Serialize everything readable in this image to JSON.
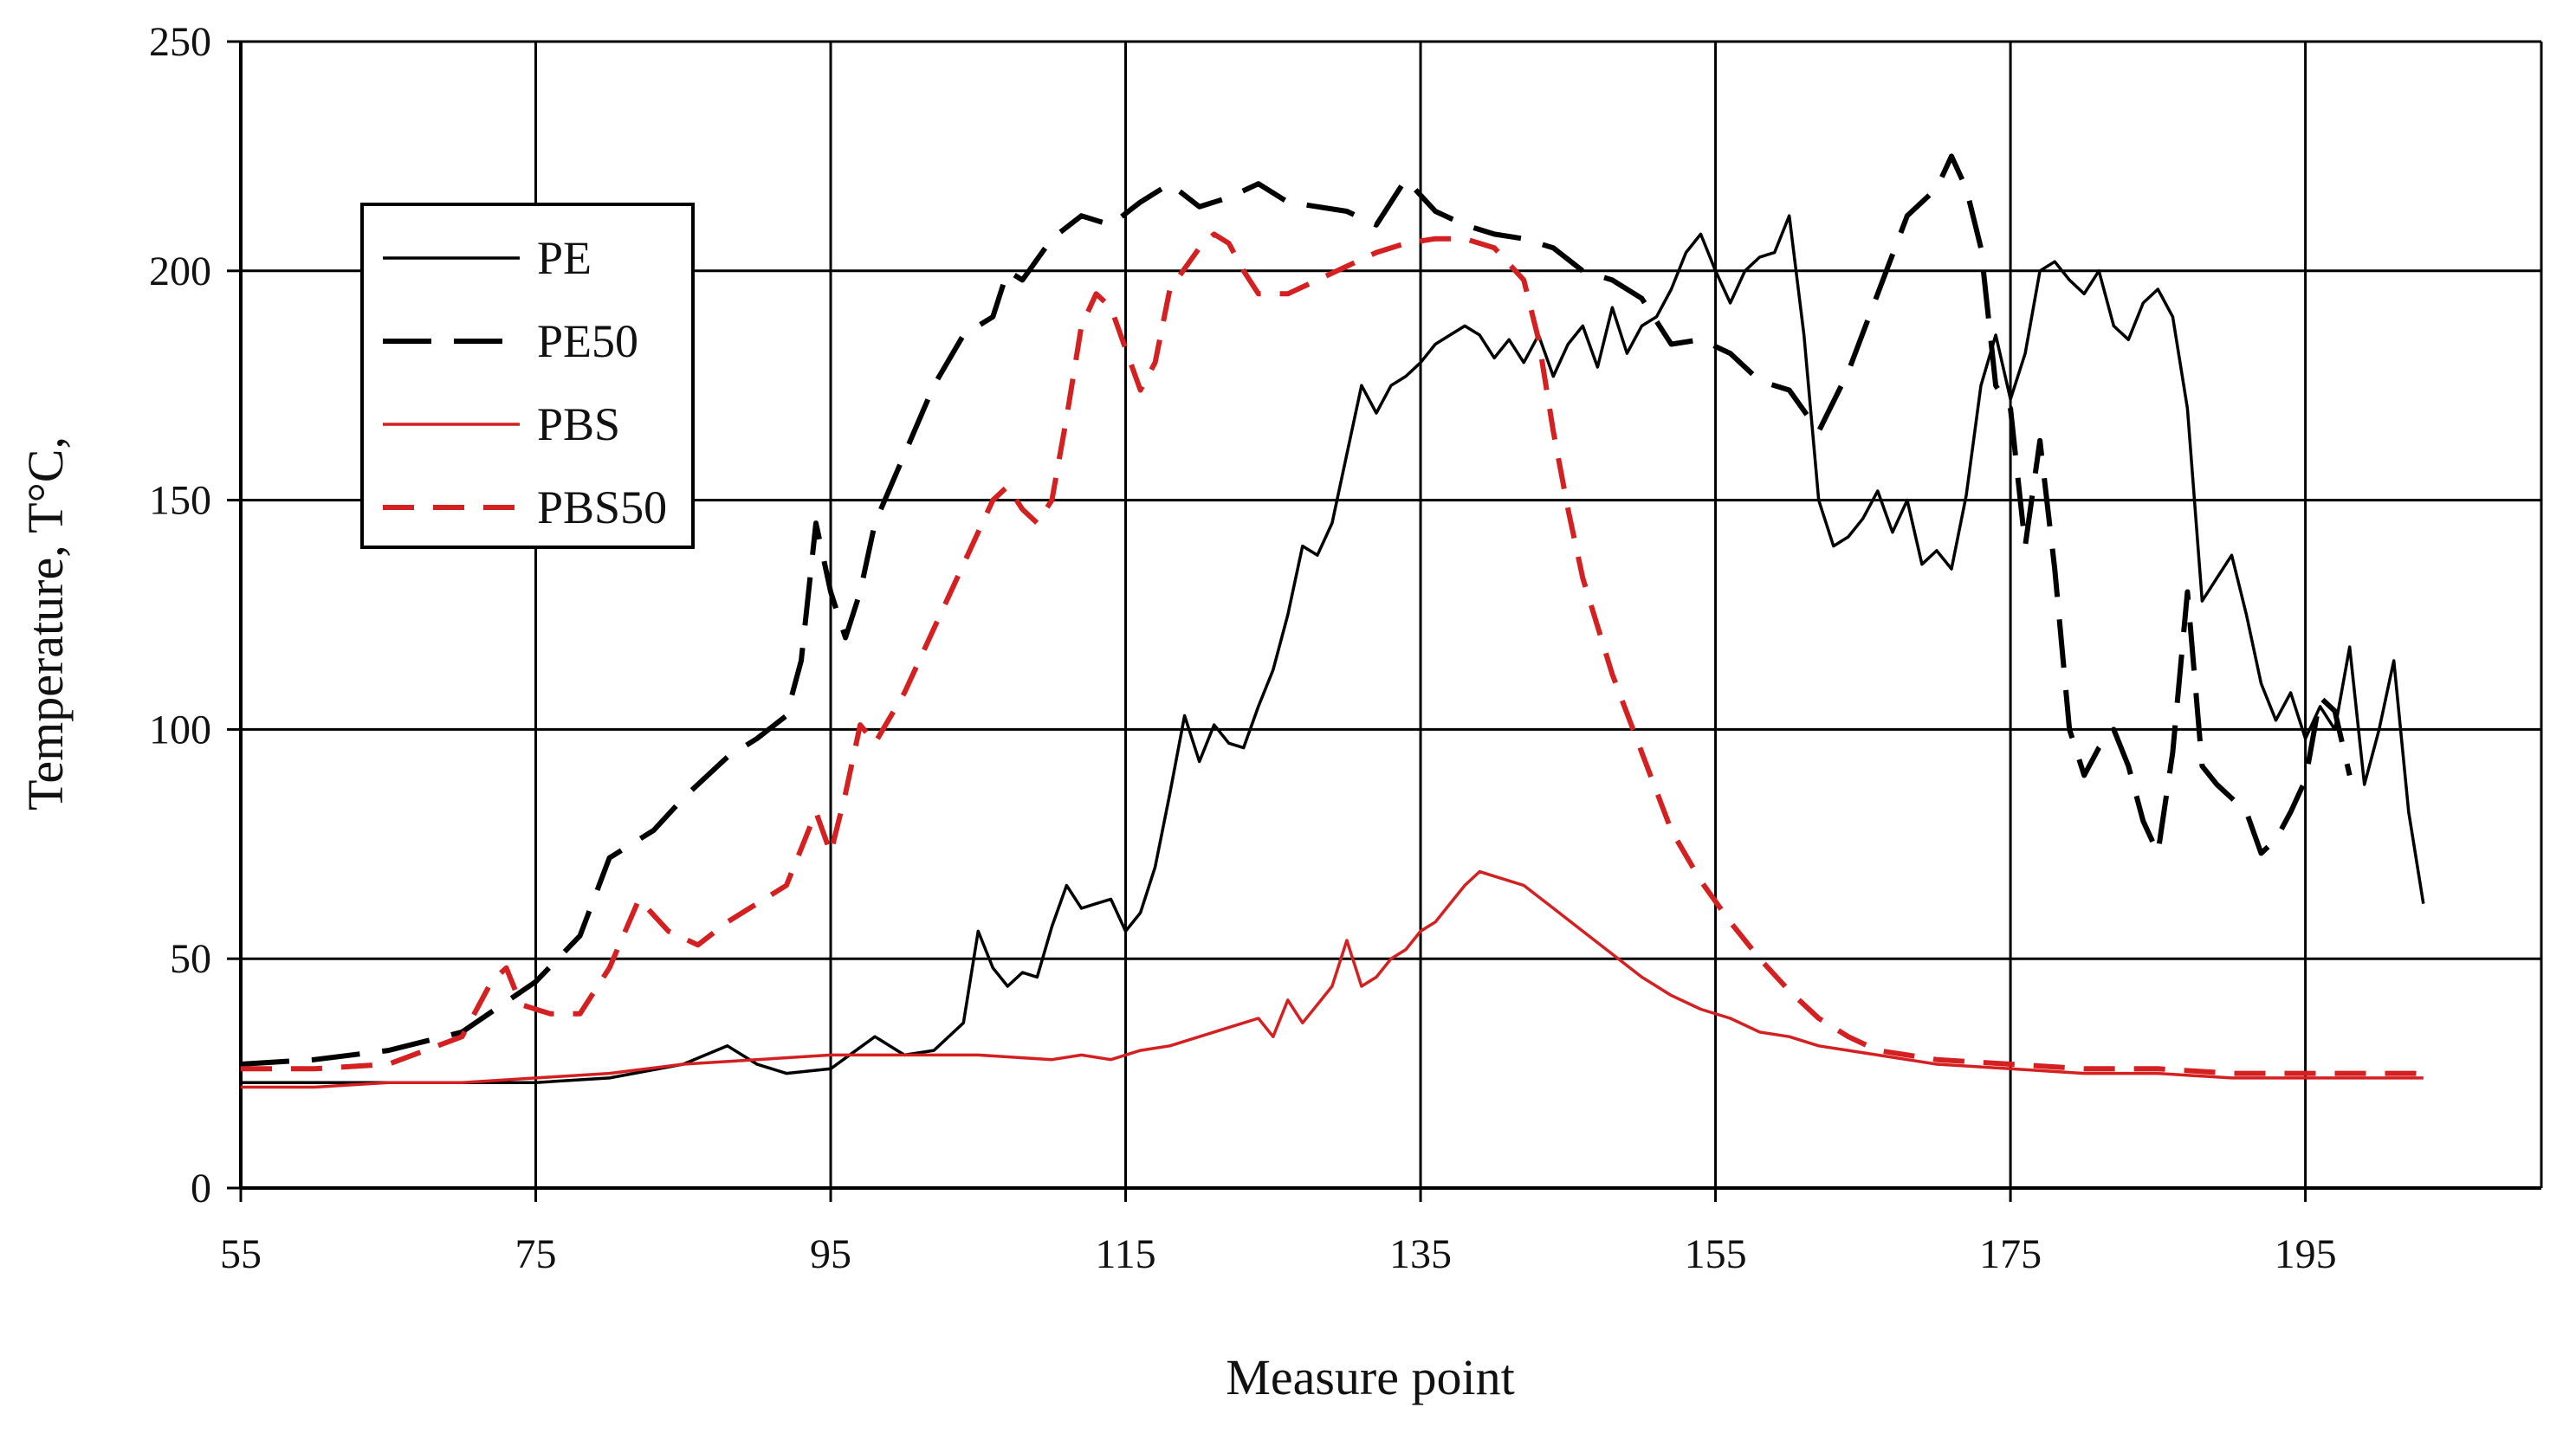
{
  "chart_data": {
    "type": "line",
    "xlabel": "Measure point",
    "ylabel": "Temperature, T°C,",
    "xlim": [
      55,
      211
    ],
    "ylim": [
      0,
      250
    ],
    "xticks": [
      55,
      75,
      95,
      115,
      135,
      155,
      175,
      195
    ],
    "yticks": [
      0,
      50,
      100,
      150,
      200,
      250
    ],
    "grid": true,
    "legend_position": "upper-left",
    "series": [
      {
        "name": "PE",
        "color": "#000000",
        "dash": "solid",
        "points": [
          [
            55,
            23
          ],
          [
            65,
            23
          ],
          [
            70,
            23
          ],
          [
            75,
            23
          ],
          [
            80,
            24
          ],
          [
            85,
            27
          ],
          [
            88,
            31
          ],
          [
            90,
            27
          ],
          [
            92,
            25
          ],
          [
            95,
            26
          ],
          [
            98,
            33
          ],
          [
            100,
            29
          ],
          [
            102,
            30
          ],
          [
            104,
            36
          ],
          [
            105,
            56
          ],
          [
            106,
            48
          ],
          [
            107,
            44
          ],
          [
            108,
            47
          ],
          [
            109,
            46
          ],
          [
            110,
            57
          ],
          [
            111,
            66
          ],
          [
            112,
            61
          ],
          [
            113,
            62
          ],
          [
            114,
            63
          ],
          [
            115,
            56
          ],
          [
            116,
            60
          ],
          [
            117,
            70
          ],
          [
            118,
            86
          ],
          [
            119,
            103
          ],
          [
            120,
            93
          ],
          [
            121,
            101
          ],
          [
            122,
            97
          ],
          [
            123,
            96
          ],
          [
            124,
            105
          ],
          [
            125,
            113
          ],
          [
            126,
            125
          ],
          [
            127,
            140
          ],
          [
            128,
            138
          ],
          [
            129,
            145
          ],
          [
            130,
            160
          ],
          [
            131,
            175
          ],
          [
            132,
            169
          ],
          [
            133,
            175
          ],
          [
            134,
            177
          ],
          [
            135,
            180
          ],
          [
            136,
            184
          ],
          [
            137,
            186
          ],
          [
            138,
            188
          ],
          [
            139,
            186
          ],
          [
            140,
            181
          ],
          [
            141,
            185
          ],
          [
            142,
            180
          ],
          [
            143,
            186
          ],
          [
            144,
            177
          ],
          [
            145,
            184
          ],
          [
            146,
            188
          ],
          [
            147,
            179
          ],
          [
            148,
            192
          ],
          [
            149,
            182
          ],
          [
            150,
            188
          ],
          [
            151,
            190
          ],
          [
            152,
            196
          ],
          [
            153,
            204
          ],
          [
            154,
            208
          ],
          [
            155,
            200
          ],
          [
            156,
            193
          ],
          [
            157,
            200
          ],
          [
            158,
            203
          ],
          [
            159,
            204
          ],
          [
            160,
            212
          ],
          [
            161,
            186
          ],
          [
            162,
            150
          ],
          [
            163,
            140
          ],
          [
            164,
            142
          ],
          [
            165,
            146
          ],
          [
            166,
            152
          ],
          [
            167,
            143
          ],
          [
            168,
            150
          ],
          [
            169,
            136
          ],
          [
            170,
            139
          ],
          [
            171,
            135
          ],
          [
            172,
            151
          ],
          [
            173,
            175
          ],
          [
            174,
            186
          ],
          [
            175,
            172
          ],
          [
            176,
            182
          ],
          [
            177,
            200
          ],
          [
            178,
            202
          ],
          [
            179,
            198
          ],
          [
            180,
            195
          ],
          [
            181,
            200
          ],
          [
            182,
            188
          ],
          [
            183,
            185
          ],
          [
            184,
            193
          ],
          [
            185,
            196
          ],
          [
            186,
            190
          ],
          [
            187,
            170
          ],
          [
            188,
            128
          ],
          [
            189,
            133
          ],
          [
            190,
            138
          ],
          [
            191,
            125
          ],
          [
            192,
            110
          ],
          [
            193,
            102
          ],
          [
            194,
            108
          ],
          [
            195,
            98
          ],
          [
            196,
            105
          ],
          [
            197,
            100
          ],
          [
            198,
            118
          ],
          [
            199,
            88
          ],
          [
            200,
            100
          ],
          [
            201,
            115
          ],
          [
            202,
            82
          ],
          [
            203,
            62
          ]
        ]
      },
      {
        "name": "PE50",
        "color": "#000000",
        "dash": "long-dash",
        "points": [
          [
            55,
            27
          ],
          [
            60,
            28
          ],
          [
            65,
            30
          ],
          [
            70,
            34
          ],
          [
            75,
            45
          ],
          [
            78,
            55
          ],
          [
            80,
            72
          ],
          [
            83,
            78
          ],
          [
            85,
            85
          ],
          [
            88,
            94
          ],
          [
            90,
            98
          ],
          [
            92,
            103
          ],
          [
            93,
            115
          ],
          [
            94,
            145
          ],
          [
            95,
            130
          ],
          [
            96,
            120
          ],
          [
            97,
            130
          ],
          [
            98,
            145
          ],
          [
            100,
            160
          ],
          [
            102,
            175
          ],
          [
            104,
            186
          ],
          [
            106,
            190
          ],
          [
            107,
            200
          ],
          [
            108,
            198
          ],
          [
            110,
            207
          ],
          [
            112,
            212
          ],
          [
            114,
            210
          ],
          [
            116,
            215
          ],
          [
            118,
            219
          ],
          [
            120,
            214
          ],
          [
            122,
            216
          ],
          [
            124,
            219
          ],
          [
            126,
            215
          ],
          [
            128,
            214
          ],
          [
            130,
            213
          ],
          [
            132,
            210
          ],
          [
            134,
            220
          ],
          [
            136,
            213
          ],
          [
            138,
            210
          ],
          [
            140,
            208
          ],
          [
            142,
            207
          ],
          [
            144,
            205
          ],
          [
            146,
            200
          ],
          [
            148,
            198
          ],
          [
            150,
            194
          ],
          [
            152,
            184
          ],
          [
            154,
            185
          ],
          [
            156,
            182
          ],
          [
            158,
            176
          ],
          [
            160,
            174
          ],
          [
            162,
            165
          ],
          [
            164,
            178
          ],
          [
            166,
            195
          ],
          [
            168,
            212
          ],
          [
            170,
            218
          ],
          [
            171,
            225
          ],
          [
            172,
            218
          ],
          [
            173,
            205
          ],
          [
            174,
            175
          ],
          [
            175,
            170
          ],
          [
            176,
            140
          ],
          [
            177,
            163
          ],
          [
            178,
            135
          ],
          [
            179,
            100
          ],
          [
            180,
            90
          ],
          [
            181,
            96
          ],
          [
            182,
            100
          ],
          [
            183,
            92
          ],
          [
            184,
            80
          ],
          [
            185,
            73
          ],
          [
            186,
            95
          ],
          [
            187,
            130
          ],
          [
            188,
            92
          ],
          [
            189,
            88
          ],
          [
            190,
            85
          ],
          [
            191,
            82
          ],
          [
            192,
            73
          ],
          [
            193,
            76
          ],
          [
            194,
            82
          ],
          [
            195,
            89
          ],
          [
            196,
            107
          ],
          [
            197,
            104
          ],
          [
            198,
            90
          ]
        ]
      },
      {
        "name": "PBS",
        "color": "#d42020",
        "dash": "solid",
        "points": [
          [
            55,
            22
          ],
          [
            60,
            22
          ],
          [
            65,
            23
          ],
          [
            70,
            23
          ],
          [
            75,
            24
          ],
          [
            80,
            25
          ],
          [
            85,
            27
          ],
          [
            90,
            28
          ],
          [
            95,
            29
          ],
          [
            100,
            29
          ],
          [
            105,
            29
          ],
          [
            110,
            28
          ],
          [
            112,
            29
          ],
          [
            114,
            28
          ],
          [
            116,
            30
          ],
          [
            118,
            31
          ],
          [
            120,
            33
          ],
          [
            122,
            35
          ],
          [
            124,
            37
          ],
          [
            125,
            33
          ],
          [
            126,
            41
          ],
          [
            127,
            36
          ],
          [
            128,
            40
          ],
          [
            129,
            44
          ],
          [
            130,
            54
          ],
          [
            131,
            44
          ],
          [
            132,
            46
          ],
          [
            133,
            50
          ],
          [
            134,
            52
          ],
          [
            135,
            56
          ],
          [
            136,
            58
          ],
          [
            137,
            62
          ],
          [
            138,
            66
          ],
          [
            139,
            69
          ],
          [
            140,
            68
          ],
          [
            142,
            66
          ],
          [
            144,
            61
          ],
          [
            146,
            56
          ],
          [
            148,
            51
          ],
          [
            150,
            46
          ],
          [
            152,
            42
          ],
          [
            154,
            39
          ],
          [
            156,
            37
          ],
          [
            158,
            34
          ],
          [
            160,
            33
          ],
          [
            162,
            31
          ],
          [
            164,
            30
          ],
          [
            166,
            29
          ],
          [
            168,
            28
          ],
          [
            170,
            27
          ],
          [
            175,
            26
          ],
          [
            180,
            25
          ],
          [
            185,
            25
          ],
          [
            190,
            24
          ],
          [
            195,
            24
          ],
          [
            200,
            24
          ],
          [
            203,
            24
          ]
        ]
      },
      {
        "name": "PBS50",
        "color": "#d42020",
        "dash": "dash",
        "points": [
          [
            55,
            26
          ],
          [
            60,
            26
          ],
          [
            65,
            27
          ],
          [
            70,
            33
          ],
          [
            72,
            45
          ],
          [
            73,
            48
          ],
          [
            74,
            40
          ],
          [
            76,
            38
          ],
          [
            78,
            38
          ],
          [
            80,
            48
          ],
          [
            82,
            63
          ],
          [
            84,
            56
          ],
          [
            86,
            53
          ],
          [
            88,
            58
          ],
          [
            90,
            62
          ],
          [
            92,
            66
          ],
          [
            93,
            74
          ],
          [
            94,
            82
          ],
          [
            95,
            73
          ],
          [
            96,
            86
          ],
          [
            97,
            101
          ],
          [
            98,
            97
          ],
          [
            100,
            108
          ],
          [
            102,
            122
          ],
          [
            104,
            136
          ],
          [
            106,
            150
          ],
          [
            107,
            153
          ],
          [
            108,
            148
          ],
          [
            109,
            145
          ],
          [
            110,
            150
          ],
          [
            111,
            168
          ],
          [
            112,
            188
          ],
          [
            113,
            195
          ],
          [
            114,
            192
          ],
          [
            115,
            183
          ],
          [
            116,
            174
          ],
          [
            117,
            180
          ],
          [
            118,
            196
          ],
          [
            120,
            205
          ],
          [
            121,
            208
          ],
          [
            122,
            206
          ],
          [
            123,
            200
          ],
          [
            124,
            195
          ],
          [
            126,
            195
          ],
          [
            128,
            198
          ],
          [
            130,
            201
          ],
          [
            132,
            204
          ],
          [
            134,
            206
          ],
          [
            136,
            207
          ],
          [
            138,
            207
          ],
          [
            140,
            205
          ],
          [
            142,
            198
          ],
          [
            143,
            185
          ],
          [
            144,
            165
          ],
          [
            145,
            148
          ],
          [
            146,
            133
          ],
          [
            148,
            112
          ],
          [
            150,
            95
          ],
          [
            152,
            78
          ],
          [
            154,
            67
          ],
          [
            156,
            58
          ],
          [
            158,
            50
          ],
          [
            160,
            43
          ],
          [
            162,
            37
          ],
          [
            164,
            33
          ],
          [
            166,
            30
          ],
          [
            168,
            29
          ],
          [
            170,
            28
          ],
          [
            175,
            27
          ],
          [
            180,
            26
          ],
          [
            185,
            26
          ],
          [
            190,
            25
          ],
          [
            195,
            25
          ],
          [
            200,
            25
          ],
          [
            203,
            25
          ]
        ]
      }
    ]
  }
}
